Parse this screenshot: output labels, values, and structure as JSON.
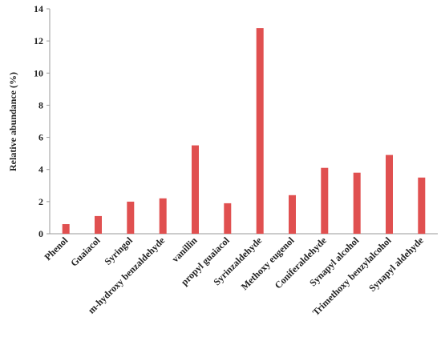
{
  "chart_data": {
    "type": "bar",
    "title": "",
    "xlabel": "",
    "ylabel": "Relative abundance (%)",
    "ylim": [
      0,
      14
    ],
    "yticks": [
      0,
      2,
      4,
      6,
      8,
      10,
      12,
      14
    ],
    "grid": false,
    "legend": "none",
    "bar_color": "#e05050",
    "categories": [
      "Phenol",
      "Guaiacol",
      "Syringol",
      "m-hydroxy benzaldehyde",
      "vanillin",
      "propyl guaiacol",
      "Syrinzaldehyde",
      "Methoxy eugenol",
      "Coniferaldehyde",
      "Synapyl alcohol",
      "Trimethoxy benzylalcohol",
      "Synapyl aldehyde"
    ],
    "values": [
      0.6,
      1.1,
      2.0,
      2.2,
      5.5,
      1.9,
      12.8,
      2.4,
      4.1,
      3.8,
      4.9,
      3.5
    ]
  }
}
